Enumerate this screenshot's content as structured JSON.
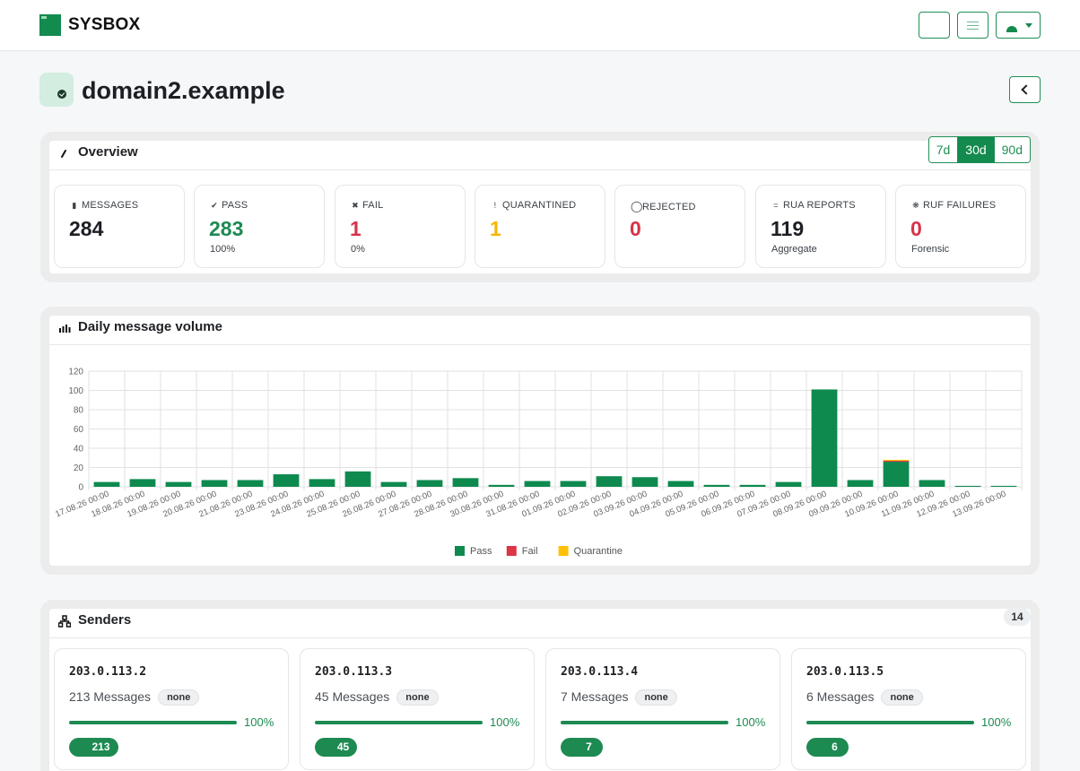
{
  "brand": {
    "name": "SYSBOX"
  },
  "page": {
    "title": "domain2.example"
  },
  "overview": {
    "title": "Overview",
    "ranges": [
      "7d",
      "30d",
      "90d"
    ],
    "active_range": "30d",
    "stats": [
      {
        "label": "MESSAGES",
        "value": "284",
        "sub": "",
        "icon": "envelope-icon"
      },
      {
        "label": "PASS",
        "value": "283",
        "sub": "100%",
        "icon": "check-icon"
      },
      {
        "label": "FAIL",
        "value": "1",
        "sub": "0%",
        "icon": "x-icon"
      },
      {
        "label": "QUARANTINED",
        "value": "1",
        "sub": "",
        "icon": "exclamation-icon"
      },
      {
        "label": "REJECTED",
        "value": "0",
        "sub": "",
        "icon": "circle-icon"
      },
      {
        "label": "RUA REPORTS",
        "value": "119",
        "sub": "Aggregate",
        "icon": "list-icon"
      },
      {
        "label": "RUF FAILURES",
        "value": "0",
        "sub": "Forensic",
        "icon": "bug-icon"
      }
    ]
  },
  "chart_card": {
    "title": "Daily message volume"
  },
  "chart_data": {
    "type": "bar",
    "stacked": true,
    "categories": [
      "17.08.26 00:00",
      "18.08.26 00:00",
      "19.08.26 00:00",
      "20.08.26 00:00",
      "21.08.26 00:00",
      "23.08.26 00:00",
      "24.08.26 00:00",
      "25.08.26 00:00",
      "26.08.26 00:00",
      "27.08.26 00:00",
      "28.08.26 00:00",
      "30.08.26 00:00",
      "31.08.26 00:00",
      "01.09.26 00:00",
      "02.09.26 00:00",
      "03.09.26 00:00",
      "04.09.26 00:00",
      "05.09.26 00:00",
      "06.09.26 00:00",
      "07.09.26 00:00",
      "08.09.26 00:00",
      "09.09.26 00:00",
      "10.09.26 00:00",
      "11.09.26 00:00",
      "12.09.26 00:00",
      "13.09.26 00:00"
    ],
    "series": [
      {
        "name": "Pass",
        "color": "#0f8a4f",
        "values": [
          5,
          8,
          5,
          7,
          7,
          13,
          8,
          16,
          5,
          7,
          9,
          2,
          6,
          6,
          11,
          10,
          6,
          2,
          2,
          5,
          101,
          7,
          26,
          7,
          1,
          1
        ]
      },
      {
        "name": "Fail",
        "color": "#dc3545",
        "values": [
          0,
          0,
          0,
          0,
          0,
          0,
          0,
          0,
          0,
          0,
          0,
          0,
          0,
          0,
          0,
          0,
          0,
          0,
          0,
          0,
          0,
          0,
          1,
          0,
          0,
          0
        ]
      },
      {
        "name": "Quarantine",
        "color": "#ffc107",
        "values": [
          0,
          0,
          0,
          0,
          0,
          0,
          0,
          0,
          0,
          0,
          0,
          0,
          0,
          0,
          0,
          0,
          0,
          0,
          0,
          0,
          0,
          0,
          1,
          0,
          0,
          0
        ]
      }
    ],
    "y_ticks": [
      "0",
      "20",
      "40",
      "60",
      "80",
      "100",
      "120"
    ],
    "ylim": [
      0,
      120
    ],
    "grid": true,
    "legend": "bottom"
  },
  "senders_card": {
    "title": "Senders",
    "count": "14",
    "items": [
      {
        "ip": "203.0.113.2",
        "messages": "213 Messages",
        "badge": "none",
        "pass_fraction": 1.0,
        "pct": "100%",
        "count": "213"
      },
      {
        "ip": "203.0.113.3",
        "messages": "45 Messages",
        "badge": "none",
        "pass_fraction": 1.0,
        "pct": "100%",
        "count": "45"
      },
      {
        "ip": "203.0.113.4",
        "messages": "7 Messages",
        "badge": "none",
        "pass_fraction": 1.0,
        "pct": "100%",
        "count": "7"
      },
      {
        "ip": "203.0.113.5",
        "messages": "6 Messages",
        "badge": "none",
        "pass_fraction": 1.0,
        "pct": "100%",
        "count": "6"
      }
    ]
  }
}
